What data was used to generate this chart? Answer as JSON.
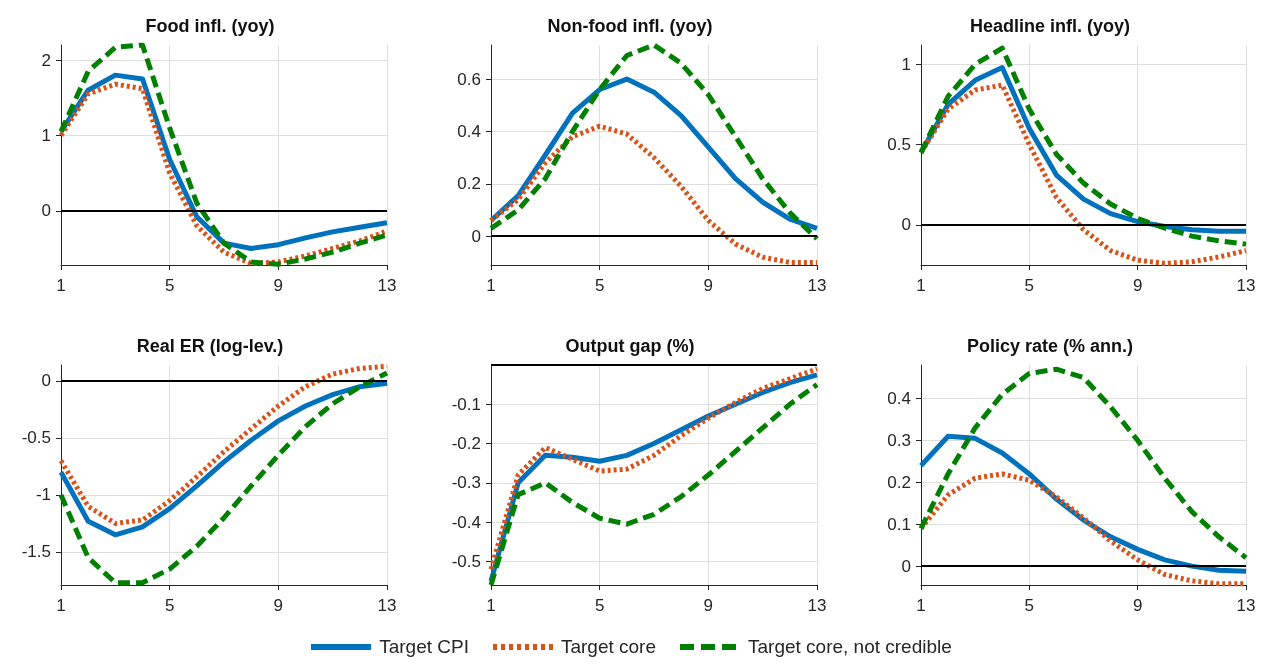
{
  "chart_data": [
    {
      "type": "line",
      "title": "Food infl. (yoy)",
      "x": [
        1,
        2,
        3,
        4,
        5,
        6,
        7,
        8,
        9,
        10,
        11,
        12,
        13
      ],
      "xlim": [
        1,
        13
      ],
      "xticks": [
        1,
        5,
        9,
        13
      ],
      "ylim": [
        -0.72,
        2.2
      ],
      "yticks": [
        0,
        1,
        2
      ],
      "grid": true,
      "legend": "bottom",
      "ref_lines": [
        {
          "axis": "y",
          "value": 0,
          "color": "#000000"
        }
      ],
      "series": [
        {
          "name": "Target CPI",
          "color": "#0072bd",
          "line_style": "solid",
          "values": [
            1.05,
            1.6,
            1.8,
            1.75,
            0.68,
            -0.08,
            -0.43,
            -0.5,
            -0.45,
            -0.36,
            -0.28,
            -0.22,
            -0.16
          ]
        },
        {
          "name": "Target core",
          "color": "#d95319",
          "line_style": "dotted",
          "values": [
            1.0,
            1.55,
            1.68,
            1.62,
            0.5,
            -0.2,
            -0.55,
            -0.7,
            -0.68,
            -0.6,
            -0.5,
            -0.4,
            -0.27
          ]
        },
        {
          "name": "Target core, not credible",
          "color": "#008000",
          "line_style": "dashed",
          "values": [
            1.05,
            1.85,
            2.17,
            2.2,
            1.1,
            0.1,
            -0.43,
            -0.68,
            -0.71,
            -0.64,
            -0.55,
            -0.43,
            -0.32
          ]
        }
      ]
    },
    {
      "type": "line",
      "title": "Non-food infl. (yoy)",
      "x": [
        1,
        2,
        3,
        4,
        5,
        6,
        7,
        8,
        9,
        10,
        11,
        12,
        13
      ],
      "xlim": [
        1,
        13
      ],
      "xticks": [
        1,
        5,
        9,
        13
      ],
      "ylim": [
        -0.11,
        0.73
      ],
      "yticks": [
        0,
        0.2,
        0.4,
        0.6
      ],
      "grid": true,
      "ref_lines": [
        {
          "axis": "y",
          "value": 0,
          "color": "#000000"
        }
      ],
      "series": [
        {
          "color": "#0072bd",
          "line_style": "solid",
          "values": [
            0.06,
            0.155,
            0.31,
            0.47,
            0.56,
            0.6,
            0.55,
            0.46,
            0.34,
            0.22,
            0.13,
            0.065,
            0.03
          ]
        },
        {
          "color": "#d95319",
          "line_style": "dotted",
          "values": [
            0.06,
            0.14,
            0.28,
            0.38,
            0.42,
            0.39,
            0.3,
            0.19,
            0.06,
            -0.03,
            -0.08,
            -0.1,
            -0.1
          ]
        },
        {
          "color": "#008000",
          "line_style": "dashed",
          "values": [
            0.03,
            0.1,
            0.22,
            0.4,
            0.56,
            0.69,
            0.73,
            0.66,
            0.54,
            0.38,
            0.22,
            0.09,
            -0.01
          ]
        }
      ]
    },
    {
      "type": "line",
      "title": "Headline infl. (yoy)",
      "x": [
        1,
        2,
        3,
        4,
        5,
        6,
        7,
        8,
        9,
        10,
        11,
        12,
        13
      ],
      "xlim": [
        1,
        13
      ],
      "xticks": [
        1,
        5,
        9,
        13
      ],
      "ylim": [
        -0.25,
        1.12
      ],
      "yticks": [
        0,
        0.5,
        1
      ],
      "grid": true,
      "ref_lines": [
        {
          "axis": "y",
          "value": 0,
          "color": "#000000"
        }
      ],
      "series": [
        {
          "color": "#0072bd",
          "line_style": "solid",
          "values": [
            0.45,
            0.75,
            0.9,
            0.98,
            0.6,
            0.31,
            0.16,
            0.07,
            0.02,
            -0.01,
            -0.03,
            -0.04,
            -0.04
          ]
        },
        {
          "color": "#d95319",
          "line_style": "dotted",
          "values": [
            0.45,
            0.72,
            0.84,
            0.87,
            0.5,
            0.17,
            -0.03,
            -0.16,
            -0.22,
            -0.24,
            -0.23,
            -0.2,
            -0.16
          ]
        },
        {
          "color": "#008000",
          "line_style": "dashed",
          "values": [
            0.45,
            0.8,
            1.0,
            1.1,
            0.72,
            0.44,
            0.26,
            0.13,
            0.04,
            -0.02,
            -0.07,
            -0.1,
            -0.12
          ]
        }
      ]
    },
    {
      "type": "line",
      "title": "Real ER (log-lev.)",
      "x": [
        1,
        2,
        3,
        4,
        5,
        6,
        7,
        8,
        9,
        10,
        11,
        12,
        13
      ],
      "xlim": [
        1,
        13
      ],
      "xticks": [
        1,
        5,
        9,
        13
      ],
      "ylim": [
        -1.79,
        0.14
      ],
      "yticks": [
        -1.5,
        -1,
        -0.5,
        0
      ],
      "grid": true,
      "ref_lines": [
        {
          "axis": "y",
          "value": 0,
          "color": "#000000"
        }
      ],
      "series": [
        {
          "color": "#0072bd",
          "line_style": "solid",
          "values": [
            -0.8,
            -1.23,
            -1.35,
            -1.28,
            -1.12,
            -0.92,
            -0.71,
            -0.52,
            -0.35,
            -0.22,
            -0.12,
            -0.05,
            -0.02
          ]
        },
        {
          "color": "#d95319",
          "line_style": "dotted",
          "values": [
            -0.7,
            -1.1,
            -1.25,
            -1.22,
            -1.05,
            -0.84,
            -0.62,
            -0.42,
            -0.22,
            -0.05,
            0.06,
            0.11,
            0.13
          ]
        },
        {
          "color": "#008000",
          "line_style": "dashed",
          "values": [
            -1.0,
            -1.55,
            -1.77,
            -1.77,
            -1.65,
            -1.45,
            -1.2,
            -0.92,
            -0.65,
            -0.4,
            -0.2,
            -0.05,
            0.07
          ]
        }
      ]
    },
    {
      "type": "line",
      "title": "Output gap (%)",
      "x": [
        1,
        2,
        3,
        4,
        5,
        6,
        7,
        8,
        9,
        10,
        11,
        12,
        13
      ],
      "xlim": [
        1,
        13
      ],
      "xticks": [
        1,
        5,
        9,
        13
      ],
      "ylim": [
        -0.56,
        0
      ],
      "yticks": [
        -0.5,
        -0.4,
        -0.3,
        -0.2,
        -0.1
      ],
      "grid": true,
      "ref_lines": [
        {
          "axis": "y",
          "value": 0,
          "color": "#000000"
        }
      ],
      "series": [
        {
          "color": "#0072bd",
          "line_style": "solid",
          "values": [
            -0.55,
            -0.3,
            -0.23,
            -0.235,
            -0.245,
            -0.23,
            -0.2,
            -0.165,
            -0.13,
            -0.1,
            -0.07,
            -0.045,
            -0.025
          ]
        },
        {
          "color": "#d95319",
          "line_style": "dotted",
          "values": [
            -0.52,
            -0.28,
            -0.21,
            -0.24,
            -0.27,
            -0.265,
            -0.23,
            -0.18,
            -0.135,
            -0.095,
            -0.06,
            -0.035,
            -0.01
          ]
        },
        {
          "color": "#008000",
          "line_style": "dashed",
          "values": [
            -0.56,
            -0.33,
            -0.3,
            -0.35,
            -0.39,
            -0.405,
            -0.38,
            -0.335,
            -0.28,
            -0.22,
            -0.16,
            -0.1,
            -0.05
          ]
        }
      ]
    },
    {
      "type": "line",
      "title": "Policy rate (% ann.)",
      "x": [
        1,
        2,
        3,
        4,
        5,
        6,
        7,
        8,
        9,
        10,
        11,
        12,
        13
      ],
      "xlim": [
        1,
        13
      ],
      "xticks": [
        1,
        5,
        9,
        13
      ],
      "ylim": [
        -0.045,
        0.48
      ],
      "yticks": [
        0,
        0.1,
        0.2,
        0.3,
        0.4
      ],
      "grid": true,
      "ref_lines": [
        {
          "axis": "y",
          "value": 0,
          "color": "#000000"
        }
      ],
      "series": [
        {
          "color": "#0072bd",
          "line_style": "solid",
          "values": [
            0.24,
            0.31,
            0.305,
            0.27,
            0.22,
            0.16,
            0.11,
            0.07,
            0.04,
            0.015,
            0.0,
            -0.01,
            -0.012
          ]
        },
        {
          "color": "#d95319",
          "line_style": "dotted",
          "values": [
            0.09,
            0.17,
            0.21,
            0.22,
            0.205,
            0.165,
            0.115,
            0.06,
            0.015,
            -0.02,
            -0.035,
            -0.042,
            -0.042
          ]
        },
        {
          "color": "#008000",
          "line_style": "dashed",
          "values": [
            0.09,
            0.22,
            0.33,
            0.41,
            0.46,
            0.47,
            0.45,
            0.38,
            0.3,
            0.21,
            0.13,
            0.07,
            0.02
          ]
        }
      ]
    }
  ]
}
